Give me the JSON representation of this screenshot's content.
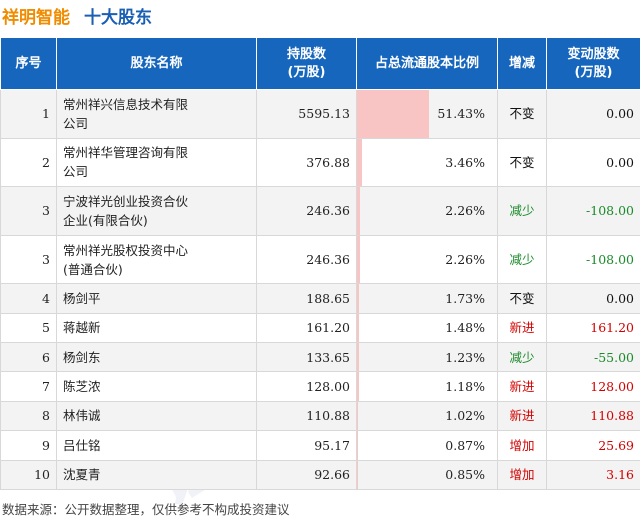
{
  "header": {
    "title": "祥明智能",
    "subtitle": "十大股东"
  },
  "columns": {
    "index": "序号",
    "name": "股东名称",
    "shares": "持股数\n(万股)",
    "ratio": "占总流通股本比例",
    "status": "增减",
    "change": "变动股数\n(万股)"
  },
  "status_colors": {
    "不变": "#111111",
    "减少": "#1a8a2a",
    "新进": "#d40000",
    "增加": "#d40000"
  },
  "rows": [
    {
      "index": "1",
      "name": "常州祥兴信息技术有限\n公司",
      "shares": "5595.13",
      "ratio": "51.43%",
      "ratio_value": 51.43,
      "status": "不变",
      "change": "0.00"
    },
    {
      "index": "2",
      "name": "常州祥华管理咨询有限\n公司",
      "shares": "376.88",
      "ratio": "3.46%",
      "ratio_value": 3.46,
      "status": "不变",
      "change": "0.00"
    },
    {
      "index": "3",
      "name": "宁波祥光创业投资合伙\n企业(有限合伙)",
      "shares": "246.36",
      "ratio": "2.26%",
      "ratio_value": 2.26,
      "status": "减少",
      "change": "-108.00"
    },
    {
      "index": "3",
      "name": "常州祥光股权投资中心\n(普通合伙)",
      "shares": "246.36",
      "ratio": "2.26%",
      "ratio_value": 2.26,
      "status": "减少",
      "change": "-108.00"
    },
    {
      "index": "4",
      "name": "杨剑平",
      "shares": "188.65",
      "ratio": "1.73%",
      "ratio_value": 1.73,
      "status": "不变",
      "change": "0.00"
    },
    {
      "index": "5",
      "name": "蒋越新",
      "shares": "161.20",
      "ratio": "1.48%",
      "ratio_value": 1.48,
      "status": "新进",
      "change": "161.20"
    },
    {
      "index": "6",
      "name": "杨剑东",
      "shares": "133.65",
      "ratio": "1.23%",
      "ratio_value": 1.23,
      "status": "减少",
      "change": "-55.00"
    },
    {
      "index": "7",
      "name": "陈芝浓",
      "shares": "128.00",
      "ratio": "1.18%",
      "ratio_value": 1.18,
      "status": "新进",
      "change": "128.00"
    },
    {
      "index": "8",
      "name": "林伟诚",
      "shares": "110.88",
      "ratio": "1.02%",
      "ratio_value": 1.02,
      "status": "新进",
      "change": "110.88"
    },
    {
      "index": "9",
      "name": "吕仕铭",
      "shares": "95.17",
      "ratio": "0.87%",
      "ratio_value": 0.87,
      "status": "增加",
      "change": "25.69"
    },
    {
      "index": "10",
      "name": "沈夏青",
      "shares": "92.66",
      "ratio": "0.85%",
      "ratio_value": 0.85,
      "status": "增加",
      "change": "3.16"
    }
  ],
  "footer": "数据来源：公开数据整理，仅供参考不构成投资建议"
}
